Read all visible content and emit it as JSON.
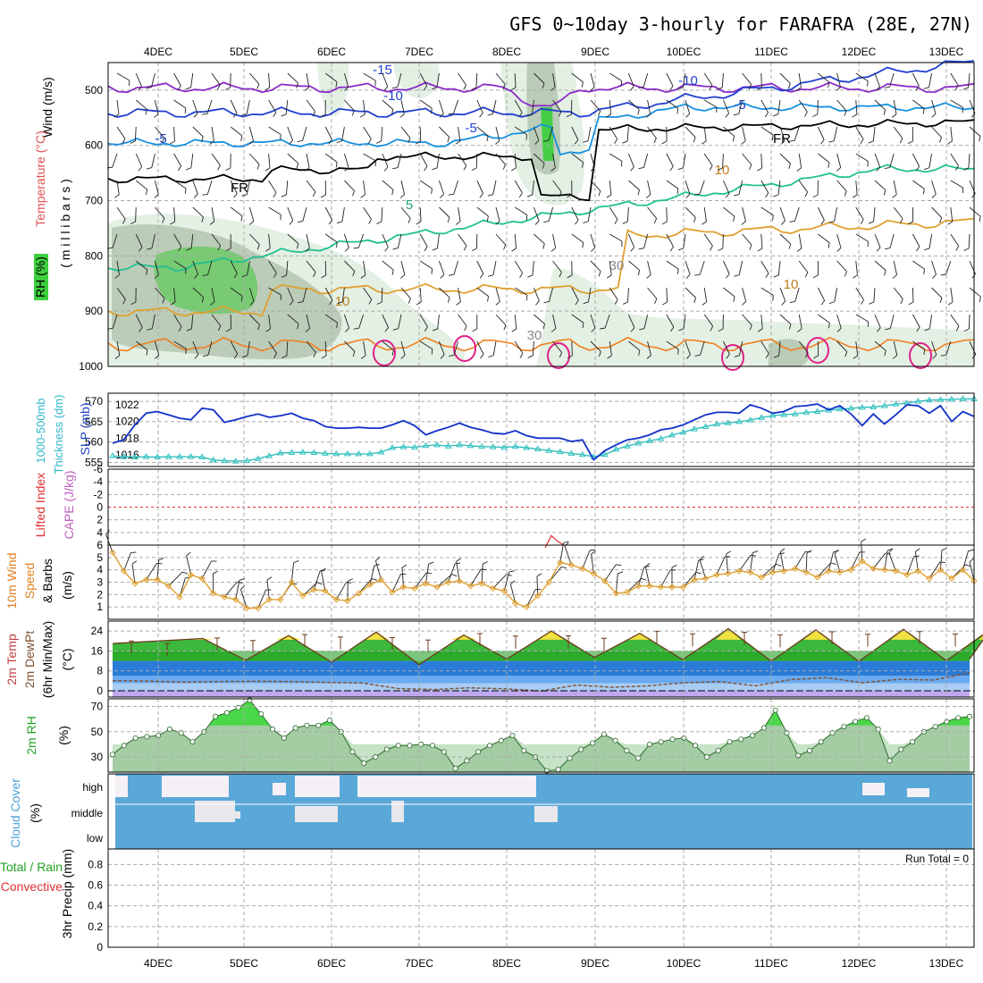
{
  "chart_data": {
    "type": "meteogram",
    "title": "GFS 0~10day 3-hourly for FARAFRA (28E, 27N)",
    "date_labels": [
      "4DEC",
      "5DEC",
      "6DEC",
      "7DEC",
      "8DEC",
      "9DEC",
      "10DEC",
      "11DEC",
      "12DEC",
      "13DEC"
    ],
    "colors": {
      "frame": "#000000",
      "grid": "#aaaaaa",
      "rh_light": "#e2efe1",
      "rh_mid": "#b8c9b5",
      "rh_green": "#74c96f",
      "rh_bright": "#3ecf3e",
      "slp": "#1030c8",
      "thickness": "#30c0c0",
      "lifted": "#e03030",
      "cape": "#c060c0",
      "wind": "#e0a030",
      "temp_hi": "#f0e040",
      "temp_green": "#3cb83c",
      "temp_dark": "#22a022",
      "temp_blue": "#2a7ad8",
      "temp_lightblue": "#6aaaf0",
      "temp_palblue": "#a8ccf4",
      "temp_purple": "#c0a8f0",
      "dewpoint": "#805030",
      "rh2m": "#4ad84a",
      "rh2m_base": "#b9d3b7",
      "cloud": "#5aa8d8",
      "cloud_clear": "#f4f0f6"
    },
    "panels": [
      {
        "name": "upper-air",
        "labels": [
          "Wind (m/s)",
          "Temperature (°C)",
          "RH (%)",
          "( m i l l i b a r s )"
        ],
        "y_ticks": [
          "500",
          "600",
          "700",
          "800",
          "900",
          "1000"
        ],
        "contour_labels": [
          "-15",
          "-10",
          "-10",
          "-5",
          "-5",
          "-5",
          "FR",
          "FR",
          "5",
          "10",
          "10",
          "10",
          "30",
          "30"
        ]
      },
      {
        "name": "slp-thickness",
        "labels": [
          "SLP (mb)",
          "1000-500mb Thickness (dm)"
        ],
        "left_ticks": [
          "570",
          "565",
          "560",
          "555"
        ],
        "right_ticks": [
          "1022",
          "1020",
          "1018",
          "1016"
        ],
        "slp_mb": [
          1017.4,
          1017.8,
          1019.6,
          1021.0,
          1021.2,
          1020.8,
          1020.4,
          1020.2,
          1021.6,
          1021.4,
          1019.9,
          1020.2,
          1020.6,
          1020.9,
          1020.5,
          1020.7,
          1021.0,
          1020.4,
          1020.1,
          1019.4,
          1019.2,
          1019.2,
          1019.3,
          1019.2,
          1019.2,
          1019.6,
          1020.1,
          1019.5,
          1018.4,
          1018.9,
          1019.3,
          1019.8,
          1019.3,
          1019.0,
          1018.6,
          1018.5,
          1018.9,
          1018.3,
          1018.0,
          1018.0,
          1018.0,
          1017.6,
          1017.8,
          1015.4,
          1016.5,
          1017.2,
          1017.8,
          1018.0,
          1018.4,
          1019.0,
          1019.2,
          1019.6,
          1020.2,
          1020.8,
          1021.1,
          1021.1,
          1021.0,
          1022.0,
          1021.6,
          1021.0,
          1021.2,
          1021.8,
          1021.9,
          1022.1,
          1021.4,
          1021.9,
          1020.9,
          1019.5,
          1020.9,
          1019.7,
          1020.8,
          1022.0,
          1021.9,
          1021.0,
          1021.9,
          1020.0,
          1021.2,
          1020.6
        ],
        "thickness_dm": [
          556.6,
          556.4,
          556.3,
          556.4,
          556.3,
          556.4,
          556.4,
          556.4,
          556.3,
          555.6,
          555.4,
          555.3,
          555.4,
          555.9,
          556.6,
          557.3,
          557.4,
          557.5,
          557.4,
          557.2,
          557.1,
          557.1,
          557.1,
          557.1,
          557.5,
          558.6,
          558.8,
          558.7,
          559.1,
          559.3,
          559.0,
          559.3,
          559.1,
          558.9,
          558.8,
          558.7,
          558.9,
          558.6,
          558.3,
          557.9,
          557.6,
          557.2,
          556.9,
          556.4,
          556.9,
          558.2,
          559.0,
          559.7,
          560.3,
          560.8,
          561.7,
          562.4,
          563.2,
          563.8,
          564.4,
          564.7,
          565.0,
          565.4,
          566.0,
          566.5,
          566.7,
          566.9,
          567.3,
          567.5,
          567.8,
          568.1,
          568.3,
          568.5,
          568.6,
          568.9,
          569.3,
          569.6,
          570.0,
          570.3,
          570.4,
          570.5,
          570.6,
          570.6
        ]
      },
      {
        "name": "lifted-cape",
        "labels": [
          "Lifted Index",
          "CAPE (J/kg)"
        ],
        "y_ticks": [
          "-6",
          "-4",
          "-2",
          "0",
          "2",
          "4",
          "6"
        ],
        "lifted_index_blip": [
          6.0,
          6.4
        ]
      },
      {
        "name": "wind10m",
        "labels": [
          "10m Wind",
          "Speed",
          "& Barbs",
          "(m/s)"
        ],
        "y_ticks": [
          "5",
          "4",
          "3",
          "2",
          "1"
        ],
        "speed_ms": [
          5.4,
          3.9,
          2.9,
          3.2,
          3.2,
          2.7,
          1.8,
          3.6,
          3.3,
          2.1,
          1.8,
          1.6,
          0.9,
          0.9,
          1.6,
          1.6,
          3.0,
          1.9,
          2.4,
          2.3,
          1.6,
          1.5,
          2.1,
          2.8,
          3.2,
          2.2,
          2.6,
          2.5,
          2.9,
          2.6,
          3.0,
          3.1,
          2.7,
          2.9,
          2.5,
          2.3,
          1.3,
          1.0,
          1.9,
          3.0,
          4.6,
          4.4,
          4.1,
          3.7,
          3.1,
          2.1,
          2.2,
          2.7,
          2.7,
          2.6,
          2.6,
          2.6,
          3.2,
          3.3,
          3.6,
          3.7,
          3.9,
          3.8,
          3.4,
          3.8,
          3.9,
          4.1,
          3.8,
          3.4,
          3.9,
          3.8,
          4.0,
          4.7,
          4.1,
          4.0,
          3.9,
          3.6,
          3.9,
          3.3,
          4.0,
          3.3,
          4.0,
          3.1
        ]
      },
      {
        "name": "temperature",
        "labels": [
          "2m Temp",
          "2m DewPt",
          "(6hr Min/Max)",
          "(°C)"
        ],
        "y_ticks": [
          "24",
          "16",
          "8",
          "0"
        ],
        "max_temp_c": [
          21.0,
          22.2,
          23.6,
          22.4,
          24.0,
          23.1,
          24.9,
          24.5,
          24.7,
          24.8
        ],
        "min_temp_c": [
          12.3,
          11.5,
          10.5,
          12.7,
          13.4,
          12.5,
          11.9,
          11.8,
          12.1,
          12.8
        ],
        "dewpoint_c": [
          4.1,
          3.9,
          3.5,
          3.7,
          3.8,
          3.7,
          3.4,
          3.1,
          0.9,
          0.5,
          1.2,
          0.8,
          -0.1,
          2.3,
          1.4,
          2.0,
          3.2,
          3.7,
          2.0,
          4.5,
          5.3,
          3.2,
          4.6,
          4.3,
          7.3
        ]
      },
      {
        "name": "rh2m",
        "labels": [
          "2m RH",
          "(%)"
        ],
        "y_ticks": [
          "70",
          "50",
          "30"
        ],
        "rh_percent": [
          32,
          39,
          45,
          46,
          47,
          52,
          49,
          42,
          50,
          62,
          65,
          69,
          75,
          64,
          52,
          45,
          53,
          55,
          55,
          59,
          50,
          34,
          25,
          30,
          36,
          39,
          39,
          40,
          39,
          34,
          21,
          27,
          34,
          39,
          43,
          47,
          35,
          30,
          19,
          20,
          29,
          36,
          41,
          48,
          43,
          35,
          29,
          40,
          42,
          44,
          45,
          39,
          30,
          35,
          42,
          44,
          47,
          53,
          67,
          49,
          31,
          35,
          42,
          49,
          54,
          58,
          61,
          52,
          27,
          36,
          42,
          50,
          54,
          58,
          61,
          62
        ]
      },
      {
        "name": "cloud-cover",
        "labels": [
          "Cloud Cover",
          "(%)"
        ],
        "y_ticks": [
          "high",
          "middle",
          "low"
        ]
      },
      {
        "name": "precip",
        "labels": [
          "Total / Rain",
          "Convective",
          "3hr Precip (mm)"
        ],
        "y_ticks": [
          "0.8",
          "0.6",
          "0.4",
          "0.2",
          "0"
        ],
        "run_total_label": "Run Total = 0"
      }
    ]
  }
}
